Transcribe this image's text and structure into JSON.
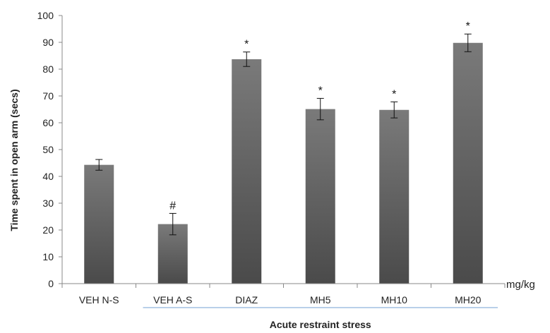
{
  "chart_data": {
    "type": "bar",
    "title": "",
    "xlabel": "Acute restraint stress",
    "ylabel": "Time spent in open arm (secs)",
    "unit_label": "mg/kg",
    "ylim": [
      0,
      100
    ],
    "yticks": [
      0,
      10,
      20,
      30,
      40,
      50,
      60,
      70,
      80,
      90,
      100
    ],
    "grid": false,
    "categories": [
      "VEH N-S",
      "VEH A-S",
      "DIAZ",
      "MH5",
      "MH10",
      "MH20"
    ],
    "values": [
      44.3,
      22.2,
      83.7,
      65.1,
      64.8,
      89.8
    ],
    "errors": [
      2.0,
      4.0,
      2.7,
      4.0,
      3.0,
      3.3
    ],
    "annotations": [
      "",
      "#",
      "*",
      "*",
      "*",
      "*"
    ],
    "bracket_categories": [
      "VEH A-S",
      "MH20"
    ],
    "bar_color_top": "#7a7a7a",
    "bar_color_bottom": "#4a4a4a",
    "bracket_color": "#8fb4dc"
  }
}
